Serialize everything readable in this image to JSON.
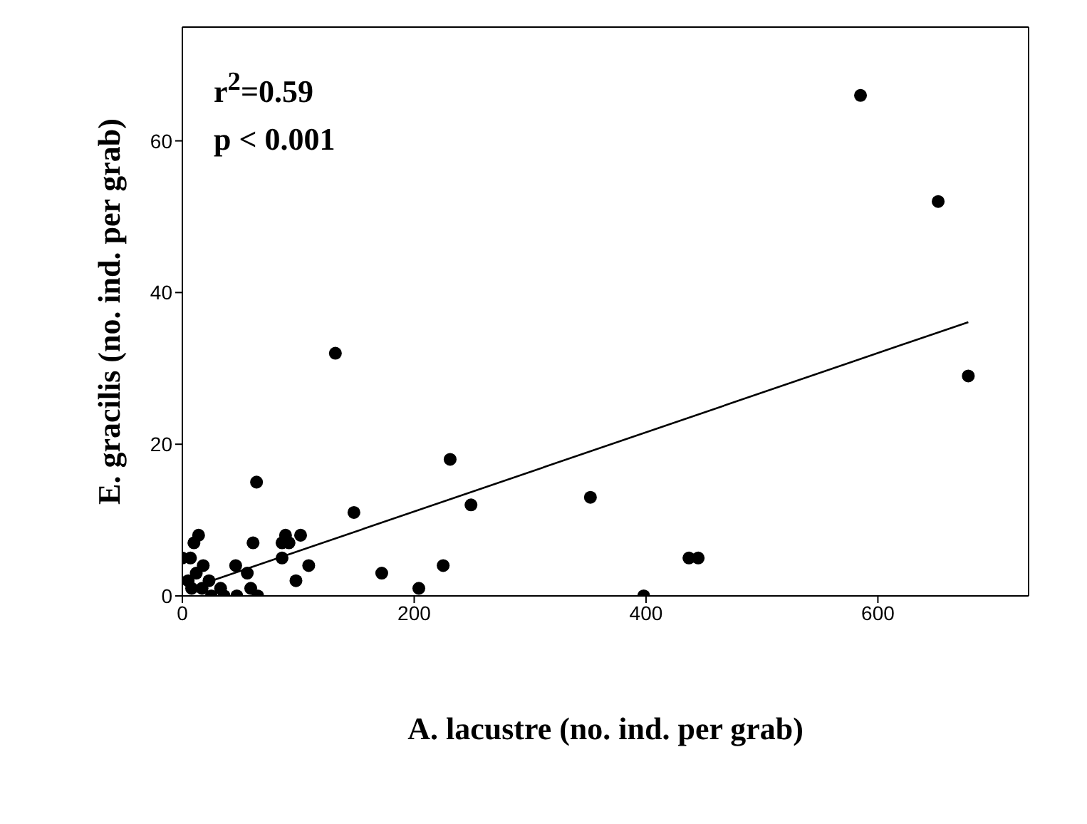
{
  "chart_data": {
    "type": "scatter",
    "xlabel": "A. lacustre (no. ind. per grab)",
    "ylabel": "E. gracilis (no. ind. per grab)",
    "annotations": [
      "r$^{2}$=0.59",
      "p < 0.001"
    ],
    "xlim": [
      0,
      730
    ],
    "ylim": [
      0,
      75
    ],
    "xticks": [
      0,
      200,
      400,
      600
    ],
    "yticks": [
      0,
      20,
      40,
      60
    ],
    "marker": "circle",
    "series": [
      {
        "color": "#000000",
        "x": [
          585,
          652,
          678,
          132,
          231,
          249,
          352,
          148,
          64,
          225,
          172,
          204,
          398,
          437,
          445,
          109,
          102,
          89,
          92,
          86,
          86,
          98,
          61,
          46,
          56,
          59,
          65,
          47,
          36,
          14,
          10,
          0,
          7,
          18,
          23,
          12,
          33,
          5,
          17,
          8,
          25
        ],
        "values": [
          66,
          52,
          29,
          32,
          18,
          12,
          13,
          11,
          15,
          4,
          3,
          1,
          0,
          5,
          5,
          4,
          8,
          8,
          7,
          7,
          5,
          2,
          7,
          4,
          3,
          1,
          0,
          0,
          0,
          8,
          7,
          5,
          5,
          4,
          2,
          3,
          1,
          2,
          1,
          1,
          0
        ]
      },
      {
        "type": "line",
        "color": "#000000",
        "marker": "none",
        "x": [
          10,
          678
        ],
        "values": [
          1.2,
          36.1
        ]
      }
    ]
  }
}
